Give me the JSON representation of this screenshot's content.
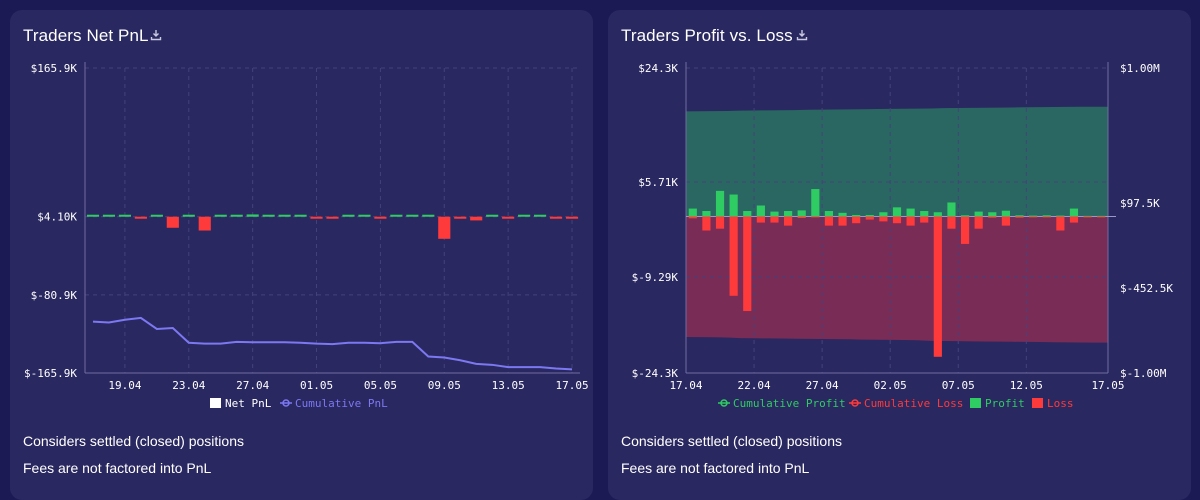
{
  "panels": [
    {
      "title": "Traders Net PnL",
      "note1": "Considers settled (closed) positions",
      "note2": "Fees are not factored into PnL"
    },
    {
      "title": "Traders Profit vs. Loss",
      "note1": "Considers settled (closed) positions",
      "note2": "Fees are not factored into PnL"
    }
  ],
  "colors": {
    "bg": "#1c1a55",
    "panel": "#2a2860",
    "profit": "#2ecc63",
    "loss": "#ff3a3a",
    "cumulative_pnl": "#7b78f2",
    "cumulative_profit_fill": "#2b6a62",
    "cumulative_loss_fill": "#7d2c55",
    "text": "#ffffff"
  },
  "chart_data": [
    {
      "type": "bar+line",
      "title": "Traders Net PnL",
      "y_ticks": [
        "$165.9K",
        "$4.10K",
        "$-80.9K",
        "$-165.9K"
      ],
      "y_tick_values": [
        165900,
        4100,
        -80900,
        -165900
      ],
      "ylim": [
        -165900,
        165900
      ],
      "x_ticks": [
        "19.04",
        "23.04",
        "27.04",
        "01.05",
        "05.05",
        "09.05",
        "13.05",
        "17.05"
      ],
      "x_tick_index": [
        2,
        6,
        10,
        14,
        18,
        22,
        26,
        30
      ],
      "days": 31,
      "net_pnl": [
        500,
        500,
        1000,
        -400,
        1500,
        -12000,
        400,
        -15000,
        300,
        300,
        2500,
        300,
        300,
        300,
        -1000,
        -1500,
        900,
        900,
        -300,
        300,
        2000,
        300,
        -24000,
        -600,
        -4000,
        300,
        -1500,
        200,
        300,
        -600,
        -900
      ],
      "cumulative_pnl": [
        -110000,
        -111000,
        -108000,
        -106000,
        -118000,
        -117000,
        -133000,
        -134000,
        -134000,
        -132000,
        -132500,
        -132500,
        -132500,
        -133000,
        -134000,
        -134500,
        -133000,
        -133000,
        -133500,
        -132000,
        -132000,
        -148000,
        -149000,
        -152000,
        -156000,
        -157000,
        -159500,
        -159500,
        -159500,
        -161000,
        -162000
      ],
      "legend": [
        {
          "label": "Net PnL",
          "color": "#ffffff"
        },
        {
          "label": "Cumulative PnL",
          "color": "#7b78f2"
        }
      ]
    },
    {
      "type": "bar+area",
      "title": "Traders Profit vs. Loss",
      "y_left_ticks": [
        "$24.3K",
        "$5.71K",
        "$-9.29K",
        "$-24.3K"
      ],
      "y_left_tick_values": [
        24300,
        5710,
        -9290,
        -24300
      ],
      "y_left_range": [
        -24300,
        24300
      ],
      "y_right_ticks": [
        "$1.00M",
        "$97.5K",
        "$-452.5K",
        "$-1.00M"
      ],
      "y_right_tick_values": [
        1000000,
        97500,
        -452500,
        -1000000
      ],
      "y_right_range": [
        -1000000,
        1000000
      ],
      "x_ticks": [
        "17.04",
        "22.04",
        "27.04",
        "02.05",
        "07.05",
        "12.05",
        "17.05"
      ],
      "x_tick_index": [
        0,
        5,
        10,
        15,
        20,
        25,
        30
      ],
      "days": 31,
      "profit": [
        1300,
        900,
        4200,
        3600,
        900,
        1800,
        800,
        900,
        1000,
        4500,
        900,
        600,
        250,
        250,
        700,
        1500,
        1300,
        900,
        700,
        2300,
        200,
        800,
        700,
        950,
        200,
        150,
        200,
        150,
        1300,
        100,
        100
      ],
      "loss": [
        -300,
        -2300,
        -2000,
        -13000,
        -15500,
        -1000,
        -1000,
        -1500,
        -250,
        -150,
        -1500,
        -1500,
        -1100,
        -500,
        -800,
        -1100,
        -1500,
        -1000,
        -23000,
        -2000,
        -4500,
        -2000,
        -200,
        -1500,
        -200,
        -150,
        -150,
        -2300,
        -1000,
        -150,
        -150
      ],
      "cumulative_profit": [
        720000,
        721000,
        722000,
        723000,
        725000,
        726000,
        727000,
        728000,
        729000,
        731000,
        732000,
        733000,
        734000,
        735000,
        736000,
        737000,
        738000,
        739000,
        740000,
        742000,
        743000,
        744000,
        745000,
        746000,
        747000,
        748000,
        749000,
        750000,
        751000,
        752000,
        752000
      ],
      "cumulative_loss": [
        -825000,
        -826000,
        -827000,
        -829000,
        -833000,
        -834000,
        -835000,
        -836000,
        -837000,
        -838000,
        -839000,
        -840000,
        -841000,
        -843000,
        -844000,
        -845000,
        -846000,
        -848000,
        -852000,
        -853000,
        -854000,
        -855000,
        -856000,
        -857000,
        -858000,
        -859000,
        -860000,
        -861000,
        -862000,
        -863000,
        -864000
      ],
      "legend": [
        {
          "label": "Cumulative Profit",
          "color": "#2ecc63"
        },
        {
          "label": "Cumulative Loss",
          "color": "#ff3a3a"
        },
        {
          "label": "Profit",
          "color": "#2ecc63"
        },
        {
          "label": "Loss",
          "color": "#ff3a3a"
        }
      ]
    }
  ]
}
